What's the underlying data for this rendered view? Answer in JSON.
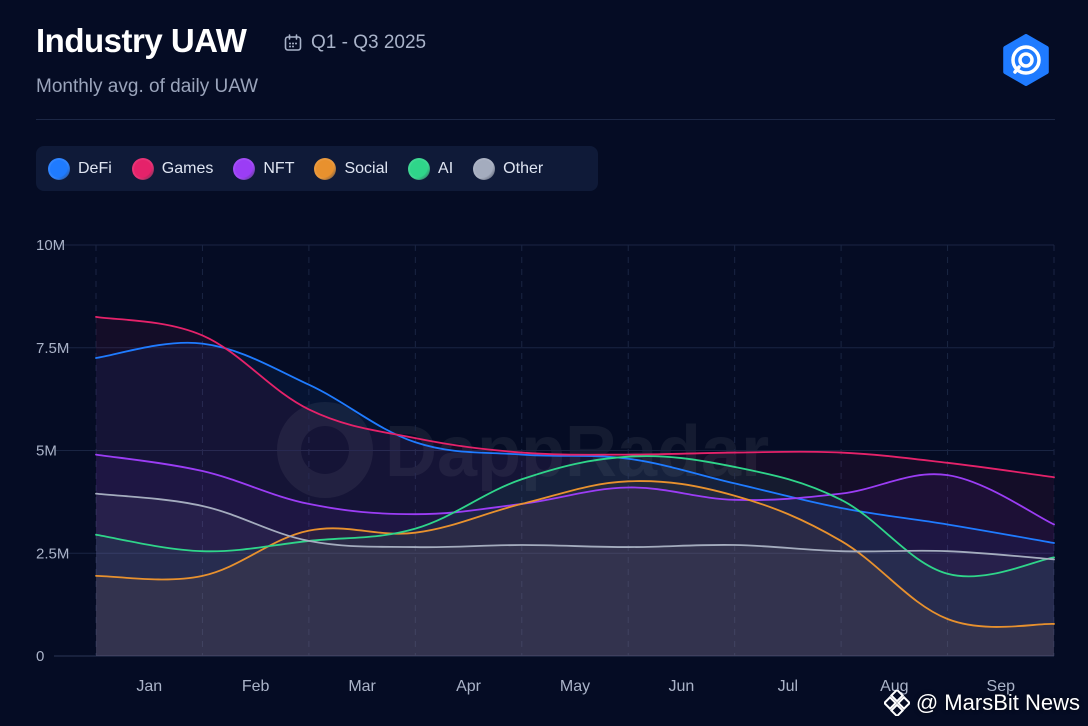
{
  "header": {
    "title": "Industry UAW",
    "period": "Q1 - Q3 2025",
    "subtitle": "Monthly avg. of daily UAW"
  },
  "icons": {
    "calendar": "calendar-icon",
    "brand": "dappradar-logo-icon",
    "watermark": "marsbit-logo-icon"
  },
  "colors": {
    "background": "#050c24",
    "grid": "#1a2543",
    "accent": "#1f7bff"
  },
  "watermark": {
    "background_text": "DappRadar",
    "source": "@ MarsBit News"
  },
  "chart_data": {
    "type": "line",
    "title": "Industry UAW",
    "subtitle": "Monthly avg. of daily UAW",
    "xlabel": "",
    "ylabel": "",
    "categories": [
      "Jan",
      "Feb",
      "Mar",
      "Apr",
      "May",
      "Jun",
      "Jul",
      "Aug",
      "Sep"
    ],
    "y_ticks": [
      {
        "value": 0,
        "label": "0"
      },
      {
        "value": 2500000,
        "label": "2.5M"
      },
      {
        "value": 5000000,
        "label": "5M"
      },
      {
        "value": 7500000,
        "label": "7.5M"
      },
      {
        "value": 10000000,
        "label": "10M"
      }
    ],
    "ylim": [
      0,
      10000000
    ],
    "x_range": [
      0,
      9
    ],
    "grid": true,
    "legend_position": "top-left",
    "series": [
      {
        "name": "DeFi",
        "color": "#1f7bff",
        "x": [
          0,
          1,
          2,
          3,
          4,
          5,
          6,
          7,
          8,
          9
        ],
        "values": [
          7250000,
          7600000,
          6600000,
          5200000,
          4900000,
          4800000,
          4200000,
          3600000,
          3200000,
          2750000
        ]
      },
      {
        "name": "Games",
        "color": "#e5226a",
        "x": [
          0,
          1,
          2,
          3,
          4,
          5,
          6,
          7,
          8,
          9
        ],
        "values": [
          8250000,
          7800000,
          6000000,
          5300000,
          4950000,
          4900000,
          4950000,
          4950000,
          4700000,
          4350000
        ]
      },
      {
        "name": "NFT",
        "color": "#9b3df5",
        "x": [
          0,
          1,
          2,
          3,
          4,
          5,
          6,
          7,
          8,
          9
        ],
        "values": [
          4900000,
          4500000,
          3700000,
          3450000,
          3700000,
          4100000,
          3800000,
          3950000,
          4400000,
          3200000
        ]
      },
      {
        "name": "Social",
        "color": "#e8912e",
        "x": [
          0,
          1,
          2,
          3,
          4,
          5,
          6,
          7,
          8,
          9
        ],
        "values": [
          1950000,
          1950000,
          3050000,
          3000000,
          3700000,
          4250000,
          3900000,
          2800000,
          900000,
          780000
        ]
      },
      {
        "name": "AI",
        "color": "#2fd58a",
        "x": [
          0,
          1,
          2,
          3,
          4,
          5,
          6,
          7,
          8,
          9
        ],
        "values": [
          2950000,
          2550000,
          2800000,
          3100000,
          4300000,
          4850000,
          4600000,
          3800000,
          2000000,
          2400000
        ]
      },
      {
        "name": "Other",
        "color": "#a4acbe",
        "x": [
          0,
          1,
          2,
          3,
          4,
          5,
          6,
          7,
          8,
          9
        ],
        "values": [
          3950000,
          3650000,
          2800000,
          2650000,
          2700000,
          2650000,
          2700000,
          2550000,
          2550000,
          2350000
        ]
      }
    ]
  }
}
